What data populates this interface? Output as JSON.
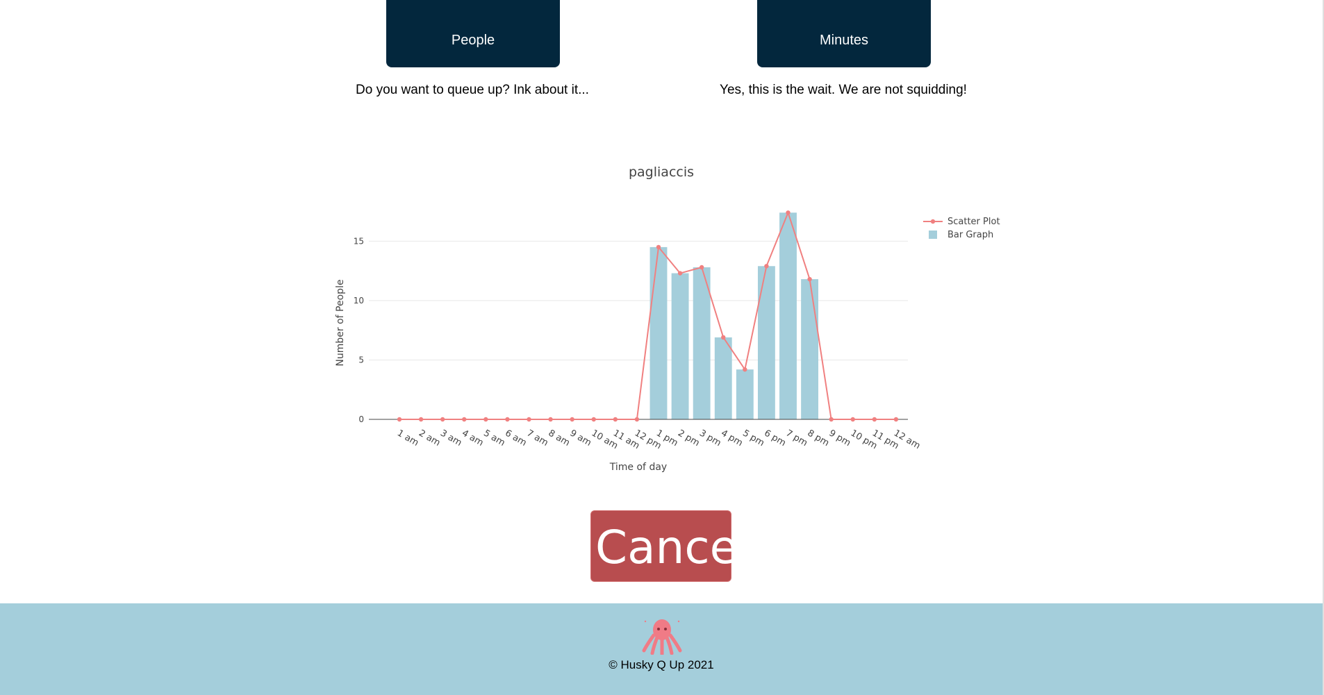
{
  "stats": {
    "people_label": "People",
    "minutes_label": "Minutes",
    "people_caption": "Do you want to queue up? Ink about it...",
    "minutes_caption": "Yes, this is the wait. We are not squidding!"
  },
  "chart_data": {
    "type": "bar",
    "title": "pagliaccis",
    "xlabel": "Time of day",
    "ylabel": "Number of People",
    "ylim": [
      0,
      18
    ],
    "yticks": [
      0,
      5,
      10,
      15
    ],
    "grid": true,
    "legend_position": "top-right",
    "categories": [
      "1 am",
      "2 am",
      "3 am",
      "4 am",
      "5 am",
      "6 am",
      "7 am",
      "8 am",
      "9 am",
      "10 am",
      "11 am",
      "12 pm",
      "1 pm",
      "2 pm",
      "3 pm",
      "4 pm",
      "5 pm",
      "6 pm",
      "7 pm",
      "8 pm",
      "9 pm",
      "10 pm",
      "11 pm",
      "12 am"
    ],
    "series": [
      {
        "name": "Scatter Plot",
        "kind": "line",
        "color": "#f08080",
        "values": [
          0,
          0,
          0,
          0,
          0,
          0,
          0,
          0,
          0,
          0,
          0,
          0,
          14.5,
          12.3,
          12.8,
          6.9,
          4.2,
          12.9,
          17.4,
          11.8,
          0,
          0,
          0,
          0
        ]
      },
      {
        "name": "Bar Graph",
        "kind": "bar",
        "color": "#a4cedb",
        "values": [
          0,
          0,
          0,
          0,
          0,
          0,
          0,
          0,
          0,
          0,
          0,
          0,
          14.5,
          12.3,
          12.8,
          6.9,
          4.2,
          12.9,
          17.4,
          11.8,
          0,
          0,
          0,
          0
        ]
      }
    ]
  },
  "actions": {
    "cancel_label": "Cancel"
  },
  "footer": {
    "copyright": "© Husky Q Up 2021",
    "logo_icon": "squid-logo-icon"
  }
}
